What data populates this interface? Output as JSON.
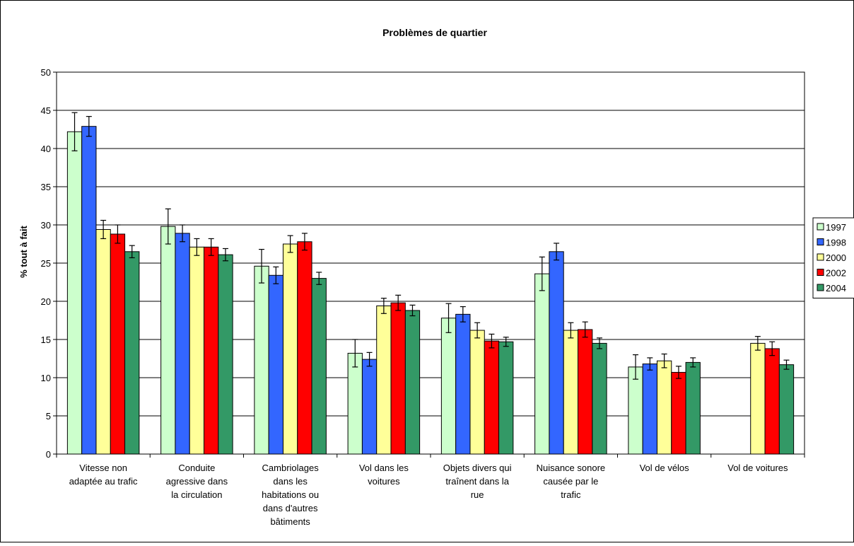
{
  "chart_data": {
    "type": "bar",
    "title": "Problèmes de quartier",
    "xlabel": "",
    "ylabel": "% tout à fait",
    "ylim": [
      0,
      50
    ],
    "yticks": [
      0,
      5,
      10,
      15,
      20,
      25,
      30,
      35,
      40,
      45,
      50
    ],
    "grid": true,
    "legend_position": "right",
    "categories": [
      [
        "Vitesse non",
        "adaptée au trafic"
      ],
      [
        "Conduite",
        "agressive dans",
        "la circulation"
      ],
      [
        "Cambriolages",
        "dans les",
        "habitations ou",
        "dans d'autres",
        "bâtiments"
      ],
      [
        "Vol dans les",
        "voitures"
      ],
      [
        "Objets divers qui",
        "traînent dans la",
        "rue"
      ],
      [
        "Nuisance sonore",
        "causée par le",
        "trafic"
      ],
      [
        "Vol de vélos"
      ],
      [
        "Vol de voitures"
      ]
    ],
    "series": [
      {
        "name": "1997",
        "color": "#ccffcc",
        "values": [
          42.2,
          29.8,
          24.6,
          13.2,
          17.8,
          23.6,
          11.4,
          null
        ],
        "errors": [
          2.5,
          2.3,
          2.2,
          1.8,
          1.9,
          2.2,
          1.6,
          null
        ]
      },
      {
        "name": "1998",
        "color": "#3366ff",
        "values": [
          42.9,
          28.9,
          23.4,
          12.4,
          18.3,
          26.5,
          11.8,
          null
        ],
        "errors": [
          1.3,
          1.1,
          1.1,
          0.9,
          1.0,
          1.1,
          0.8,
          null
        ]
      },
      {
        "name": "2000",
        "color": "#ffff99",
        "values": [
          29.4,
          27.1,
          27.5,
          19.4,
          16.2,
          16.2,
          12.2,
          14.5
        ],
        "errors": [
          1.2,
          1.1,
          1.1,
          1.0,
          1.0,
          1.0,
          0.9,
          0.9
        ]
      },
      {
        "name": "2002",
        "color": "#ff0000",
        "values": [
          28.8,
          27.1,
          27.8,
          19.8,
          14.8,
          16.3,
          10.7,
          13.8
        ],
        "errors": [
          1.2,
          1.1,
          1.1,
          1.0,
          0.9,
          1.0,
          0.8,
          0.9
        ]
      },
      {
        "name": "2004",
        "color": "#339966",
        "values": [
          26.5,
          26.1,
          23.0,
          18.8,
          14.7,
          14.5,
          12.0,
          11.7
        ],
        "errors": [
          0.8,
          0.8,
          0.8,
          0.7,
          0.6,
          0.7,
          0.6,
          0.6
        ]
      }
    ]
  }
}
